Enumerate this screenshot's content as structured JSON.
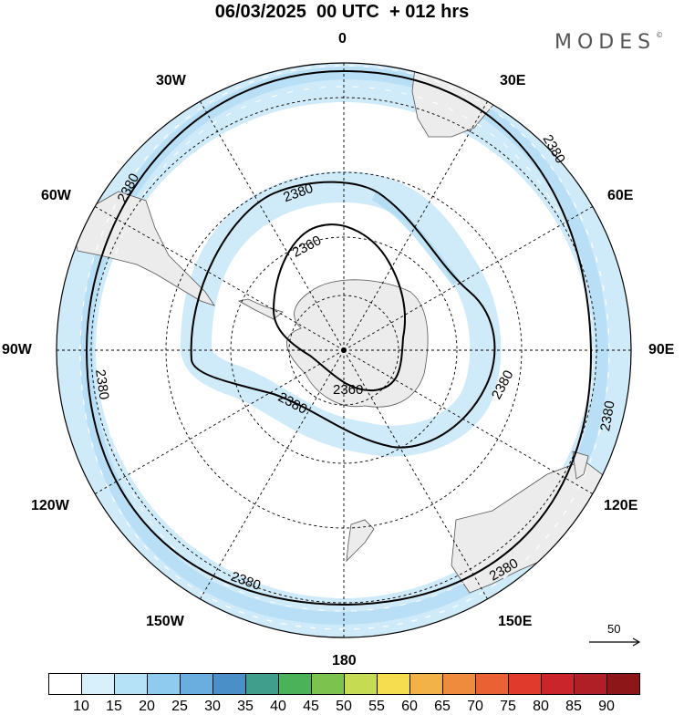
{
  "header": {
    "title": "06/03/2025  00 UTC  + 012 hrs",
    "brand": "MODES",
    "brand_mark": "©"
  },
  "longitude_labels": {
    "n0": "0",
    "n30e": "30E",
    "n60e": "60E",
    "n90e": "90E",
    "n120e": "120E",
    "n150e": "150E",
    "n180": "180",
    "n150w": "150W",
    "n120w": "120W",
    "n90w": "90W",
    "n60w": "60W",
    "n30w": "30W"
  },
  "contour_labels": {
    "outer_a": "2380",
    "outer_b": "2380",
    "outer_c": "2380",
    "outer_d": "2380",
    "outer_e": "2380",
    "inner_a": "2380",
    "inner_b": "2380",
    "inner_c": "2380",
    "low_a": "2360",
    "low_b": "2360"
  },
  "reference_vector": {
    "label": "50"
  },
  "colorbar": {
    "colors": [
      "#ffffff",
      "#d8f0fc",
      "#b6e2f8",
      "#8ecbef",
      "#6aaedf",
      "#4a8fc8",
      "#3f9f8c",
      "#4cb25a",
      "#7cc24e",
      "#c5dc52",
      "#f6dc4f",
      "#f3b247",
      "#ef8b3c",
      "#ea6234",
      "#e03a2c",
      "#c9252a",
      "#b01e26",
      "#8c1618"
    ],
    "labels": [
      "10",
      "15",
      "20",
      "25",
      "30",
      "35",
      "40",
      "45",
      "50",
      "55",
      "60",
      "65",
      "70",
      "75",
      "80",
      "85",
      "90"
    ]
  },
  "colors": {
    "jet_light": "#cfeaf9",
    "jet_mid": "#a9d8f3",
    "land": "#ececec"
  }
}
